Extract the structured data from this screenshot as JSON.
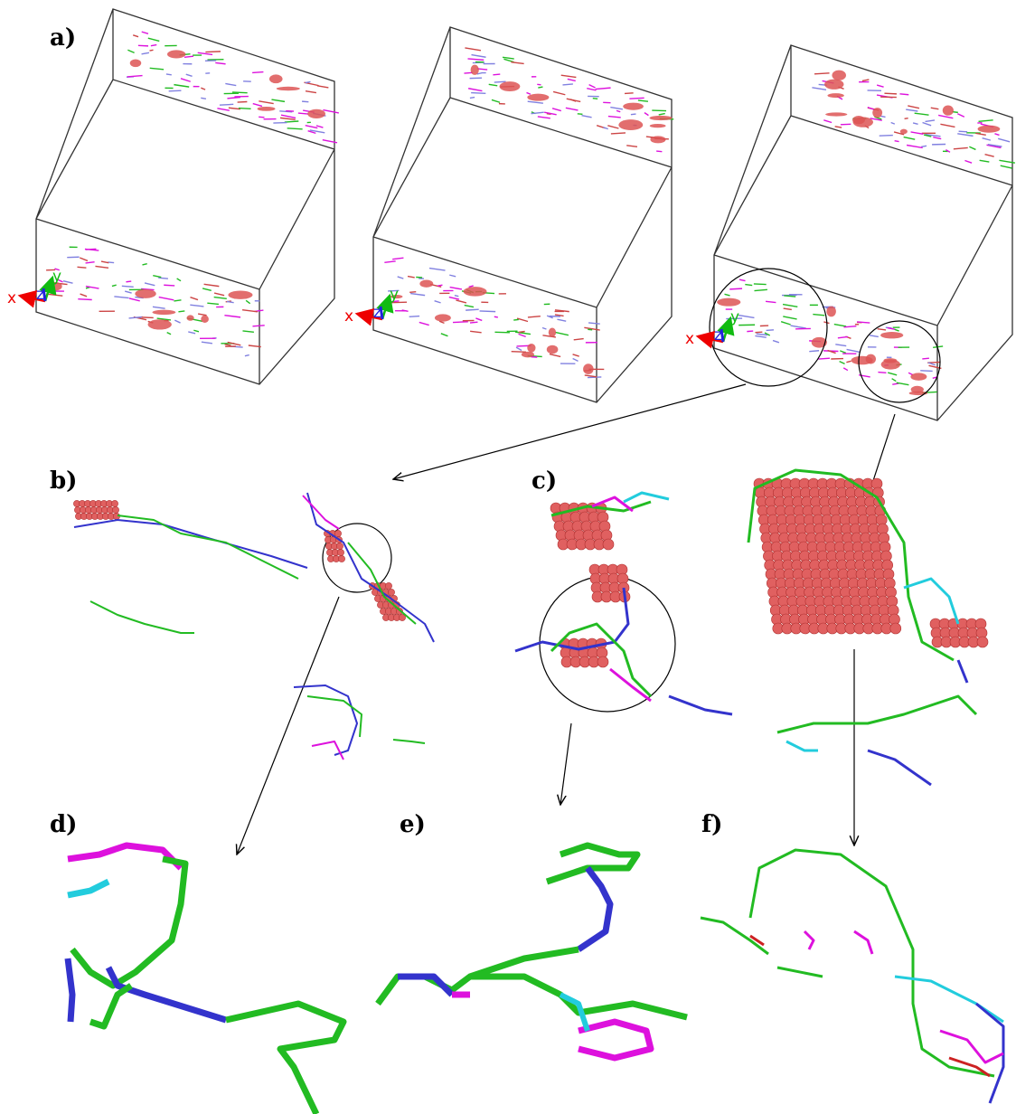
{
  "panels": [
    {
      "label": "a)"
    },
    {
      "label": "b)"
    },
    {
      "label": "c)"
    },
    {
      "label": "d)"
    },
    {
      "label": "e)"
    },
    {
      "label": "f)"
    }
  ],
  "axes_triads": [
    {
      "x": "x",
      "y": "y",
      "z": "z"
    },
    {
      "x": "x",
      "y": "y",
      "z": "z"
    },
    {
      "x": "x",
      "y": "y",
      "z": "z"
    }
  ]
}
